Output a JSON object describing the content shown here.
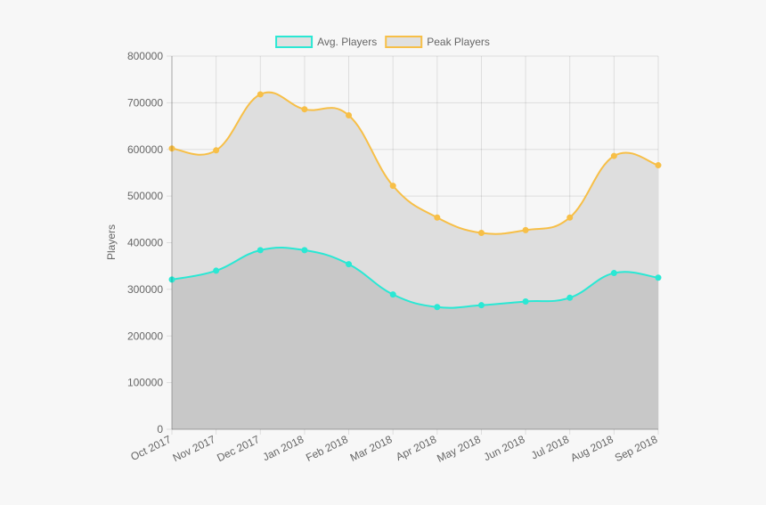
{
  "chart_data": {
    "type": "area",
    "categories": [
      "Oct 2017",
      "Nov 2017",
      "Dec 2017",
      "Jan 2018",
      "Feb 2018",
      "Mar 2018",
      "Apr 2018",
      "May 2018",
      "Jun 2018",
      "Jul 2018",
      "Aug 2018",
      "Sep 2018"
    ],
    "series": [
      {
        "name": "Avg. Players",
        "values": [
          321000,
          340000,
          384000,
          384000,
          354000,
          289000,
          262000,
          266000,
          274000,
          282000,
          335000,
          325000
        ],
        "color": "#2ae8d4",
        "fill": "#c8c8c8"
      },
      {
        "name": "Peak Players",
        "values": [
          602000,
          598000,
          718000,
          686000,
          673000,
          522000,
          454000,
          421000,
          427000,
          454000,
          586000,
          566000
        ],
        "color": "#f7bf47",
        "fill": "#dedede"
      }
    ],
    "title": "",
    "xlabel": "",
    "ylabel": "Players",
    "ylim": [
      0,
      800000
    ],
    "yticks": [
      "0",
      "100000",
      "200000",
      "300000",
      "400000",
      "500000",
      "600000",
      "700000",
      "800000"
    ],
    "grid": true,
    "legend_position": "top-center"
  }
}
